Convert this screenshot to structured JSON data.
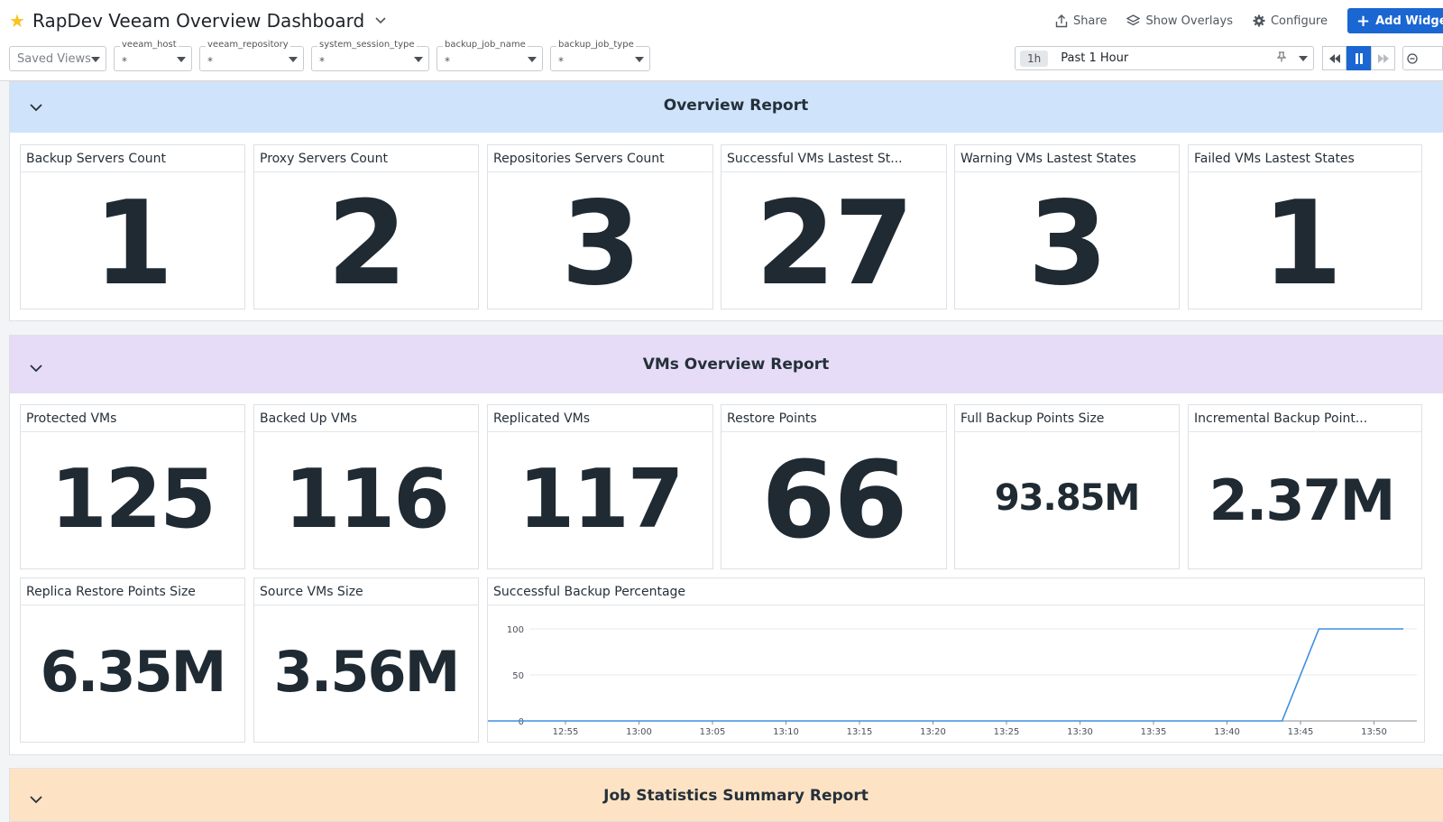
{
  "header": {
    "title": "RapDev Veeam Overview Dashboard",
    "actions": {
      "share": "Share",
      "overlays": "Show Overlays",
      "configure": "Configure",
      "add": "Add Widgets"
    }
  },
  "filters": {
    "saved_views": "Saved Views",
    "vars": [
      {
        "label": "veeam_host",
        "value": "*"
      },
      {
        "label": "veeam_repository",
        "value": "*"
      },
      {
        "label": "system_session_type",
        "value": "*"
      },
      {
        "label": "backup_job_name",
        "value": "*"
      },
      {
        "label": "backup_job_type",
        "value": "*"
      }
    ]
  },
  "time": {
    "badge": "1h",
    "label": "Past 1 Hour"
  },
  "groups": {
    "overview": {
      "title": "Overview Report",
      "color": "#cfe3fb",
      "widgets": [
        {
          "title": "Backup Servers Count",
          "value": "1"
        },
        {
          "title": "Proxy Servers Count",
          "value": "2"
        },
        {
          "title": "Repositories Servers Count",
          "value": "3"
        },
        {
          "title": "Successful VMs Lastest St...",
          "value": "27"
        },
        {
          "title": "Warning VMs Lastest States",
          "value": "3"
        },
        {
          "title": "Failed VMs Lastest States",
          "value": "1"
        }
      ]
    },
    "vms": {
      "title": "VMs Overview Report",
      "color": "#e6dcf7",
      "widgets": [
        {
          "title": "Protected VMs",
          "value": "125"
        },
        {
          "title": "Backed Up VMs",
          "value": "116"
        },
        {
          "title": "Replicated VMs",
          "value": "117"
        },
        {
          "title": "Restore Points",
          "value": "66"
        },
        {
          "title": "Full Backup Points Size",
          "value": "93.85M"
        },
        {
          "title": "Incremental Backup Point...",
          "value": "2.37M"
        },
        {
          "title": "Replica Restore Points Size",
          "value": "6.35M"
        },
        {
          "title": "Source VMs Size",
          "value": "3.56M"
        }
      ]
    },
    "jobs": {
      "title": "Job Statistics Summary Report",
      "color": "#fde3c4"
    }
  },
  "chart_data": {
    "type": "line",
    "title": "Successful Backup Percentage",
    "x": [
      "12:55",
      "13:00",
      "13:05",
      "13:10",
      "13:15",
      "13:20",
      "13:25",
      "13:30",
      "13:35",
      "13:40",
      "13:45",
      "13:50"
    ],
    "yticks": [
      "100",
      "50",
      "0"
    ],
    "ylim": [
      0,
      100
    ],
    "series": [
      {
        "color": "#3c8fe0",
        "points": [
          [
            -1.3,
            0
          ],
          [
            9.75,
            0
          ],
          [
            10.25,
            100
          ],
          [
            11.4,
            100
          ]
        ]
      }
    ]
  }
}
